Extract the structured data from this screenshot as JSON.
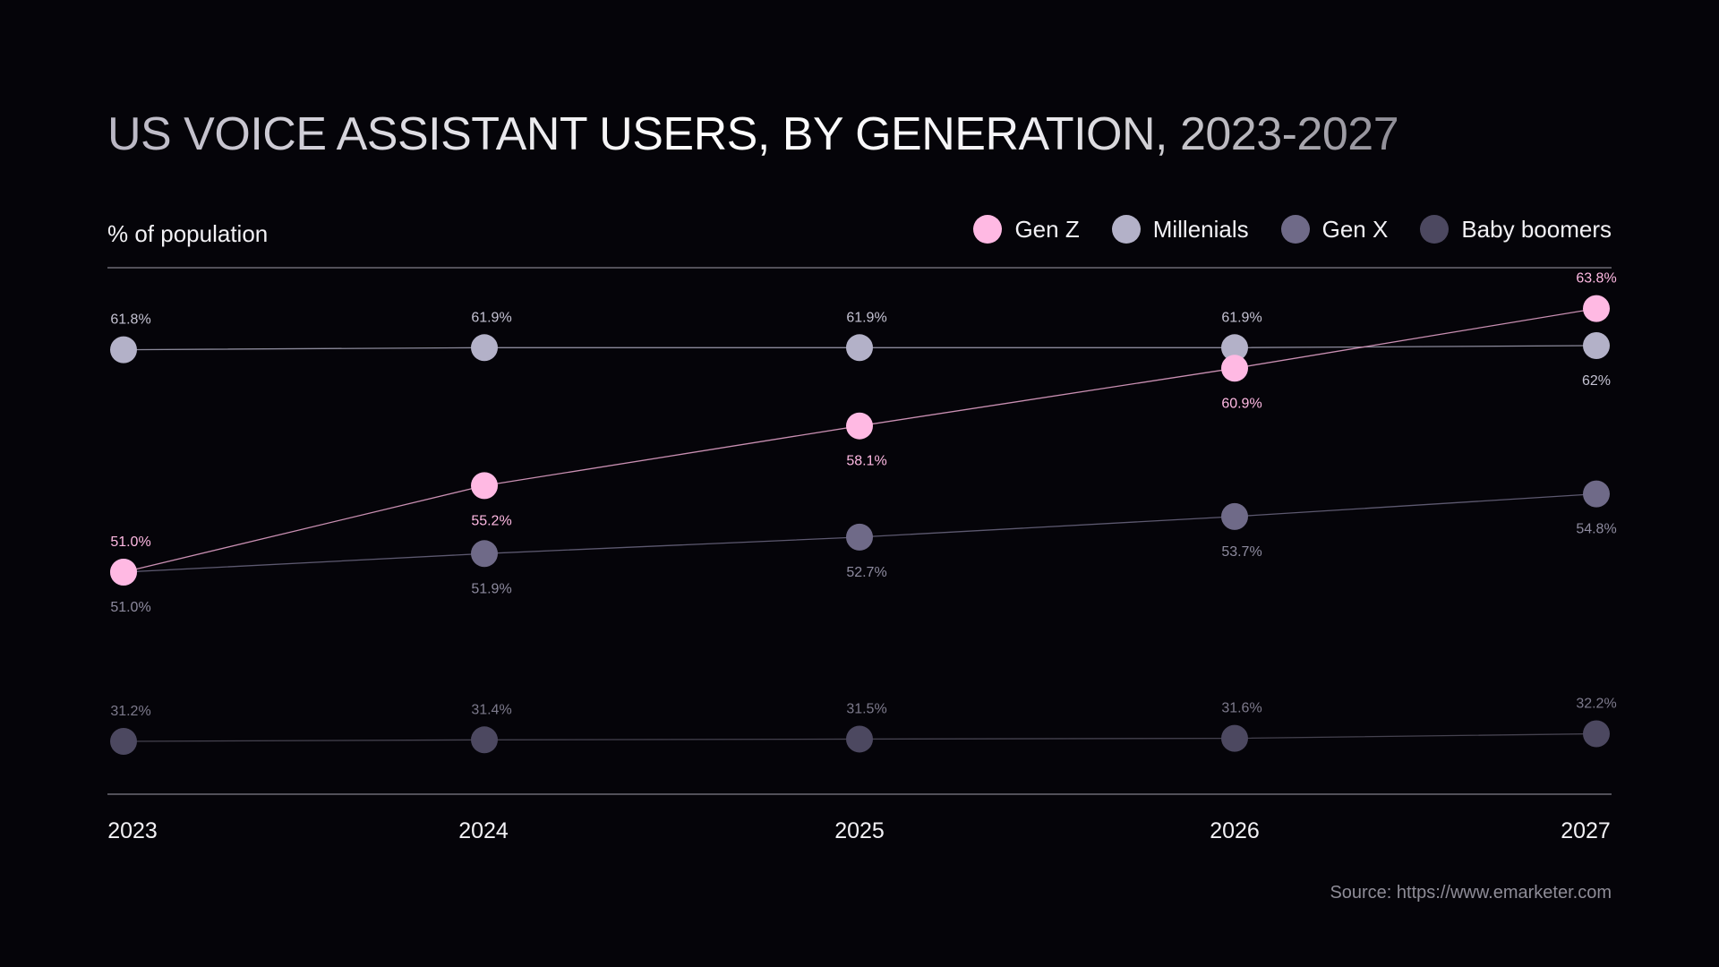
{
  "title": "US VOICE ASSISTANT USERS, BY GENERATION, 2023-2027",
  "subtitle": "% of population",
  "source": "Source: https://www.emarketer.com",
  "legend": [
    {
      "name": "Gen Z",
      "color": "#ffb9e3"
    },
    {
      "name": "Millenials",
      "color": "#b3b1c8"
    },
    {
      "name": "Gen X",
      "color": "#6f6a88"
    },
    {
      "name": "Baby boomers",
      "color": "#4c4860"
    }
  ],
  "chart_data": {
    "type": "line",
    "title": "US VOICE ASSISTANT USERS, BY GENERATION, 2023-2027",
    "ylabel": "% of population",
    "xlabel": "",
    "categories": [
      "2023",
      "2024",
      "2025",
      "2026",
      "2027"
    ],
    "series": [
      {
        "name": "Gen Z",
        "color": "#ffb9e3",
        "line_color": "#c98fb2",
        "label_color": "#ffb9e3",
        "values": [
          51.0,
          55.2,
          58.1,
          60.9,
          63.8
        ],
        "labels": [
          "51.0%",
          "55.2%",
          "58.1%",
          "60.9%",
          "63.8%"
        ],
        "label_side": [
          "above",
          "below",
          "below",
          "below",
          "above"
        ]
      },
      {
        "name": "Millenials",
        "color": "#b3b1c8",
        "line_color": "#8b899a",
        "label_color": "#c4c2d2",
        "values": [
          61.8,
          61.9,
          61.9,
          61.9,
          62.0
        ],
        "labels": [
          "61.8%",
          "61.9%",
          "61.9%",
          "61.9%",
          "62%"
        ],
        "label_side": [
          "above",
          "above",
          "above",
          "above",
          "below"
        ]
      },
      {
        "name": "Gen X",
        "color": "#6f6a88",
        "line_color": "#5d5970",
        "label_color": "#8d8a9e",
        "values": [
          51.0,
          51.9,
          52.7,
          53.7,
          54.8
        ],
        "labels": [
          "51.0%",
          "51.9%",
          "52.7%",
          "53.7%",
          "54.8%"
        ],
        "label_side": [
          "below",
          "below",
          "below",
          "below",
          "below"
        ]
      },
      {
        "name": "Baby boomers",
        "color": "#4c4860",
        "line_color": "#45424f",
        "label_color": "#7d7a8c",
        "values": [
          31.2,
          31.4,
          31.5,
          31.6,
          32.2
        ],
        "labels": [
          "31.2%",
          "31.4%",
          "31.5%",
          "31.6%",
          "32.2%"
        ],
        "label_side": [
          "above",
          "above",
          "above",
          "above",
          "above"
        ]
      }
    ]
  }
}
